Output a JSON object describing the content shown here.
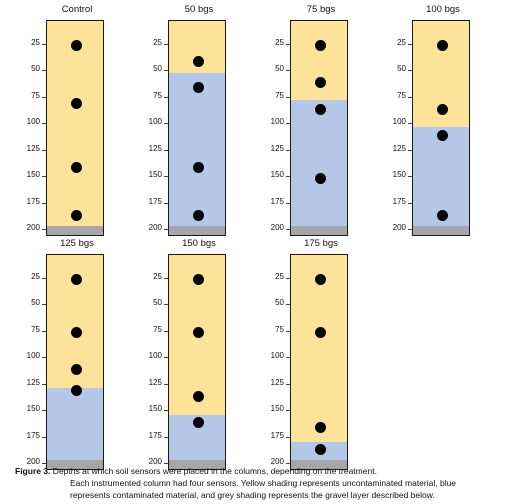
{
  "y_ticks": [
    25,
    50,
    75,
    100,
    125,
    150,
    175,
    200
  ],
  "depth_max": 200,
  "colors": {
    "uncontaminated": "#fde39a",
    "contaminated": "#b5c7e6",
    "gravel": "#a6a6aa"
  },
  "panels": [
    {
      "title": "Control",
      "contaminated_from": null,
      "contaminated_to": null,
      "sensors": [
        25,
        80,
        140,
        185
      ]
    },
    {
      "title": "50 bgs",
      "contaminated_from": 50,
      "contaminated_to": 200,
      "sensors": [
        40,
        65,
        140,
        185
      ]
    },
    {
      "title": "75 bgs",
      "contaminated_from": 75,
      "contaminated_to": 200,
      "sensors": [
        25,
        60,
        85,
        150
      ]
    },
    {
      "title": "100 bgs",
      "contaminated_from": 100,
      "contaminated_to": 200,
      "sensors": [
        25,
        85,
        110,
        185
      ]
    },
    {
      "title": "125 bgs",
      "contaminated_from": 125,
      "contaminated_to": 200,
      "sensors": [
        25,
        75,
        110,
        130
      ]
    },
    {
      "title": "150 bgs",
      "contaminated_from": 150,
      "contaminated_to": 200,
      "sensors": [
        25,
        75,
        135,
        160
      ]
    },
    {
      "title": "175 bgs",
      "contaminated_from": 175,
      "contaminated_to": 200,
      "sensors": [
        25,
        75,
        165,
        185
      ]
    }
  ],
  "caption": {
    "label": "Figure 3.",
    "line1": " Depths at which soil sensors were placed in the columns, depending on the treatment.",
    "line2": "Each instrumented column had four sensors. Yellow shading represents uncontaminated material, blue",
    "line3": "represents contaminated material, and grey shading represents the gravel layer described below."
  }
}
